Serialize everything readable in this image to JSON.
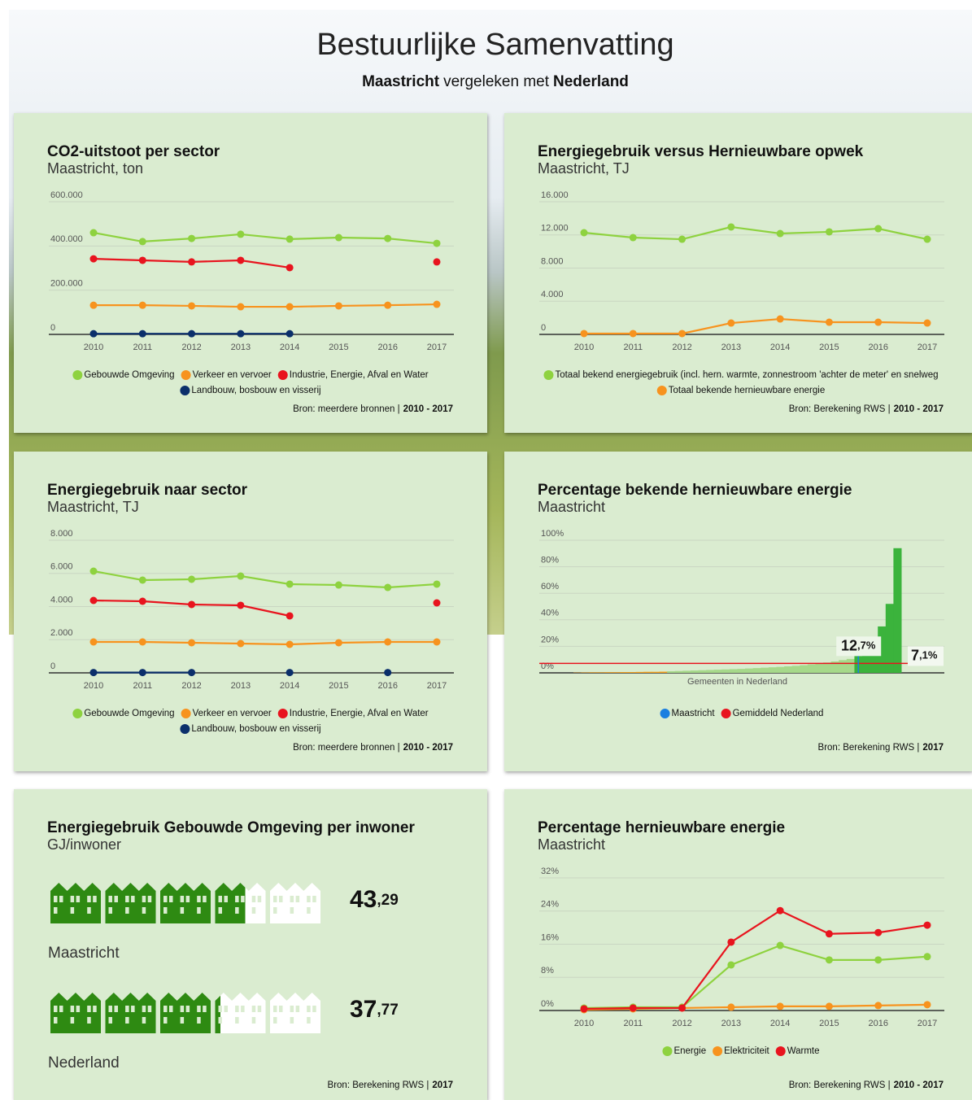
{
  "header": {
    "title": "Bestuurlijke Samenvatting",
    "subtitle": [
      "Maastricht",
      "vergeleken met",
      "Nederland"
    ]
  },
  "chart_data": [
    {
      "type": "line",
      "title": "CO2-uitstoot per sector",
      "subtitle": "Maastricht, ton",
      "categories": [
        "2010",
        "2011",
        "2012",
        "2013",
        "2014",
        "2015",
        "2016",
        "2017"
      ],
      "series": [
        {
          "name": "Gebouwde Omgeving",
          "color": "#8ed23f",
          "values": [
            460000,
            420000,
            434000,
            453000,
            431000,
            438000,
            434000,
            412000
          ]
        },
        {
          "name": "Verkeer en vervoer",
          "color": "#f7931e",
          "values": [
            132000,
            132000,
            129000,
            125000,
            125000,
            129000,
            132000,
            136000
          ]
        },
        {
          "name": "Industrie, Energie, Afval en Water",
          "color": "#e8141e",
          "values": [
            342000,
            335000,
            328000,
            335000,
            302000,
            null,
            null,
            328000
          ]
        },
        {
          "name": "Landbouw, bosbouw en visserij",
          "color": "#0b2f6b",
          "values": [
            3000,
            3000,
            3000,
            3000,
            3000,
            null,
            null,
            null
          ]
        }
      ],
      "ylim": [
        0,
        600000
      ],
      "yticks": [
        0,
        {
          "value": 200000,
          "label": "200.000"
        },
        {
          "value": 400000,
          "label": "400.000"
        },
        {
          "value": 600000,
          "label": "600.000"
        }
      ],
      "grid": true,
      "source": "Bron: meerdere bronnen |",
      "source_period": "2010 - 2017"
    },
    {
      "type": "line",
      "title": "Energiegebruik versus Hernieuwbare opwek",
      "subtitle": "Maastricht, TJ",
      "categories": [
        "2010",
        "2011",
        "2012",
        "2013",
        "2014",
        "2015",
        "2016",
        "2017"
      ],
      "series": [
        {
          "name": "Totaal bekend energiegebruik (incl. hern. warmte, zonnestroom 'achter de meter' en snelweg",
          "color": "#8ed23f",
          "values": [
            12270,
            11680,
            11480,
            12960,
            12170,
            12370,
            12760,
            11480
          ]
        },
        {
          "name": "Totaal bekende hernieuwbare energie",
          "color": "#f7931e",
          "values": [
            100,
            100,
            100,
            1370,
            1860,
            1470,
            1470,
            1370
          ]
        }
      ],
      "ylim": [
        0,
        16000
      ],
      "yticks": [
        0,
        {
          "value": 4000,
          "label": "4.000"
        },
        {
          "value": 8000,
          "label": "8.000"
        },
        {
          "value": 12000,
          "label": "12.000"
        },
        {
          "value": 16000,
          "label": "16.000"
        }
      ],
      "grid": true,
      "source": "Bron: Berekening RWS |",
      "source_period": "2010 - 2017"
    },
    {
      "type": "line",
      "title": "Energiegebruik naar sector",
      "subtitle": "Maastricht, TJ",
      "categories": [
        "2010",
        "2011",
        "2012",
        "2013",
        "2014",
        "2015",
        "2016",
        "2017"
      ],
      "series": [
        {
          "name": "Gebouwde Omgeving",
          "color": "#8ed23f",
          "values": [
            6135,
            5595,
            5644,
            5840,
            5350,
            5300,
            5153,
            5350
          ]
        },
        {
          "name": "Verkeer en vervoer",
          "color": "#f7931e",
          "values": [
            1865,
            1865,
            1816,
            1767,
            1718,
            1816,
            1865,
            1865
          ]
        },
        {
          "name": "Industrie, Energie, Afval en Water",
          "color": "#e8141e",
          "values": [
            4368,
            4319,
            4123,
            4074,
            3436,
            null,
            null,
            4221
          ]
        },
        {
          "name": "Landbouw, bosbouw en visserij",
          "color": "#0b2f6b",
          "values": [
            20,
            20,
            20,
            null,
            20,
            null,
            20,
            null
          ]
        }
      ],
      "ylim": [
        0,
        8000
      ],
      "yticks": [
        0,
        {
          "value": 2000,
          "label": "2.000"
        },
        {
          "value": 4000,
          "label": "4.000"
        },
        {
          "value": 6000,
          "label": "6.000"
        },
        {
          "value": 8000,
          "label": "8.000"
        }
      ],
      "grid": true,
      "source": "Bron: meerdere bronnen |",
      "source_period": "2010 - 2017"
    },
    {
      "type": "distribution",
      "title": "Percentage bekende hernieuwbare energie",
      "subtitle": "Maastricht",
      "xlabel": "Gemeenten in Nederland",
      "values": [
        0.2,
        0.3,
        0.4,
        0.4,
        0.5,
        0.5,
        0.6,
        0.6,
        0.7,
        0.8,
        0.8,
        0.9,
        1.2,
        1.4,
        1.6,
        1.8,
        2.0,
        2.2,
        2.4,
        2.6,
        2.8,
        3.0,
        3.3,
        3.6,
        3.9,
        4.2,
        4.5,
        4.9,
        5.3,
        5.8,
        6.4,
        7.0,
        7.8,
        8.6,
        9.6,
        10.5,
        12.7,
        14,
        22,
        35,
        52,
        94
      ],
      "colors": [
        "#f7a21e",
        "#a6d98a",
        "#3bb33c"
      ],
      "markers": [
        {
          "name": "Maastricht",
          "color": "#1a7fe0",
          "value": 12.7,
          "value_label": "12,7%"
        },
        {
          "name": "Gemiddeld Nederland",
          "color": "#e8141e",
          "value": 7.1,
          "value_label": "7,1%"
        }
      ],
      "ylim": [
        0,
        100
      ],
      "yticks": [
        {
          "value": 0,
          "label": "0%"
        },
        {
          "value": 20,
          "label": "20%"
        },
        {
          "value": 40,
          "label": "40%"
        },
        {
          "value": 60,
          "label": "60%"
        },
        {
          "value": 80,
          "label": "80%"
        },
        {
          "value": 100,
          "label": "100%"
        }
      ],
      "grid": true,
      "source": "Bron: Berekening RWS |",
      "source_period": "2017"
    },
    {
      "type": "pictogram",
      "title": "Energiegebruik Gebouwde Omgeving per inwoner",
      "subtitle": "GJ/inwoner",
      "categories": [
        "Maastricht",
        "Nederland"
      ],
      "values": [
        43.29,
        37.77
      ],
      "value_labels": [
        "43,29",
        "37,77"
      ],
      "xlim": [
        0,
        60
      ],
      "color": "#2e8a12",
      "source": "Bron: Berekening RWS |",
      "source_period": "2017"
    },
    {
      "type": "line",
      "title": "Percentage hernieuwbare energie",
      "subtitle": "Maastricht",
      "categories": [
        "2010",
        "2011",
        "2012",
        "2013",
        "2014",
        "2015",
        "2016",
        "2017"
      ],
      "series": [
        {
          "name": "Energie",
          "color": "#8ed23f",
          "values": [
            0.6,
            0.8,
            0.8,
            11.0,
            15.7,
            12.2,
            12.2,
            13.0
          ]
        },
        {
          "name": "Elektriciteit",
          "color": "#f7931e",
          "values": [
            0.2,
            0.4,
            0.6,
            0.8,
            1.0,
            1.0,
            1.2,
            1.4
          ]
        },
        {
          "name": "Warmte",
          "color": "#e8141e",
          "values": [
            0.4,
            0.6,
            0.6,
            16.5,
            24.1,
            18.5,
            18.8,
            20.6
          ]
        }
      ],
      "ylim": [
        0,
        32
      ],
      "yticks": [
        {
          "value": 0,
          "label": "0%"
        },
        {
          "value": 8,
          "label": "8%"
        },
        {
          "value": 16,
          "label": "16%"
        },
        {
          "value": 24,
          "label": "24%"
        },
        {
          "value": 32,
          "label": "32%"
        }
      ],
      "grid": true,
      "source": "Bron: Berekening RWS |",
      "source_period": "2010 - 2017"
    }
  ]
}
